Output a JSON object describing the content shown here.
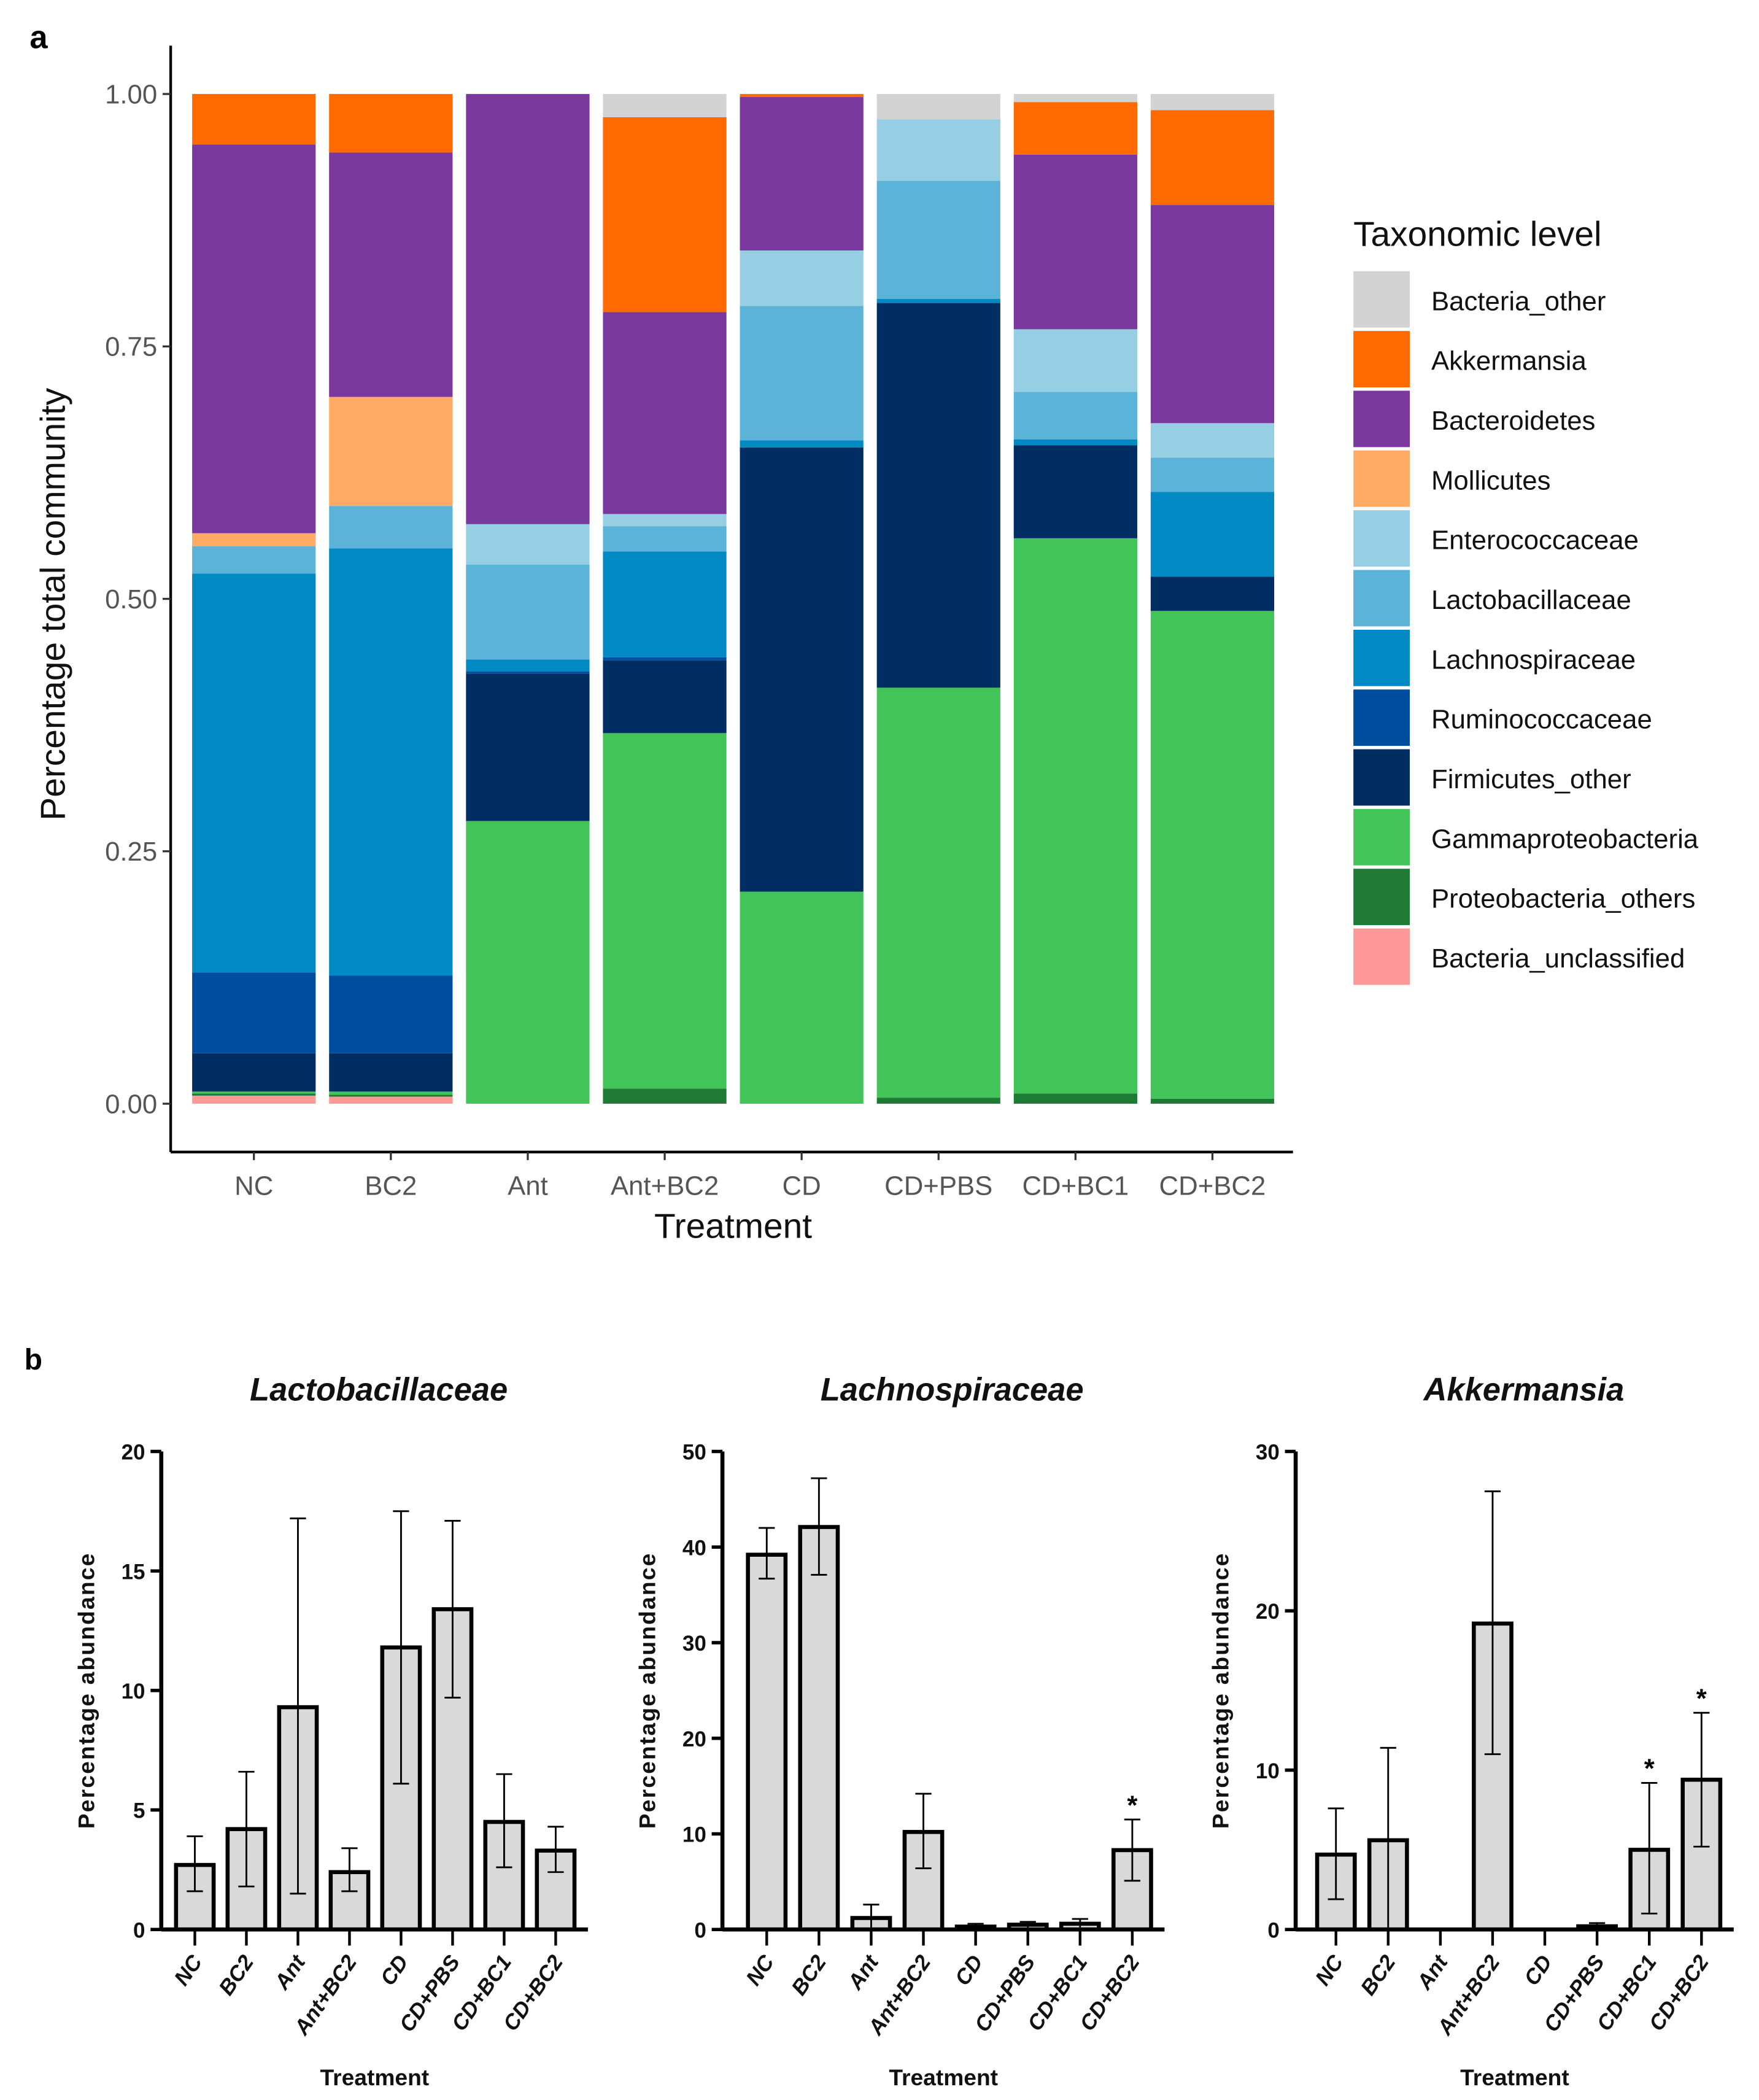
{
  "panel_labels": [
    "a",
    "b"
  ],
  "chart_data": [
    {
      "type": "bar",
      "stacked": true,
      "xlabel": "Treatment",
      "ylabel": "Percentage total community",
      "ylim": [
        0,
        1
      ],
      "yticks": [
        "0.00",
        "0.25",
        "0.50",
        "0.75",
        "1.00"
      ],
      "legend_title": "Taxonomic level",
      "legend_position": "right",
      "categories": [
        "NC",
        "BC2",
        "Ant",
        "Ant+BC2",
        "CD",
        "CD+PBS",
        "CD+BC1",
        "CD+BC2"
      ],
      "series": [
        {
          "name": "Bacteria_unclassified",
          "color": "#ff9999",
          "values": [
            0.008,
            0.007,
            0,
            0,
            0,
            0,
            0,
            0
          ]
        },
        {
          "name": "Proteobacteria_others",
          "color": "#1f7a35",
          "values": [
            0.002,
            0.002,
            0,
            0.015,
            0,
            0.006,
            0.01,
            0.005
          ]
        },
        {
          "name": "Gammaproteobacteria",
          "color": "#42c459",
          "values": [
            0.002,
            0.003,
            0.28,
            0.352,
            0.21,
            0.406,
            0.55,
            0.483
          ]
        },
        {
          "name": "Firmicutes_other",
          "color": "#002d62",
          "values": [
            0.038,
            0.038,
            0.146,
            0.072,
            0.44,
            0.381,
            0.092,
            0.034
          ]
        },
        {
          "name": "Ruminococcaceae",
          "color": "#004c9e",
          "values": [
            0.08,
            0.077,
            0.002,
            0.003,
            0,
            0,
            0,
            0
          ]
        },
        {
          "name": "Lachnospiraceae",
          "color": "#0089c2",
          "values": [
            0.395,
            0.423,
            0.012,
            0.105,
            0.007,
            0.004,
            0.006,
            0.084
          ]
        },
        {
          "name": "Lactobacillaceae",
          "color": "#5cb3d8",
          "values": [
            0.027,
            0.042,
            0.094,
            0.025,
            0.133,
            0.117,
            0.047,
            0.034
          ]
        },
        {
          "name": "Enterococcaceae",
          "color": "#96cee4",
          "values": [
            0,
            0,
            0.04,
            0.012,
            0.055,
            0.061,
            0.062,
            0.034
          ]
        },
        {
          "name": "Mollicutes",
          "color": "#ffab66",
          "values": [
            0.013,
            0.108,
            0,
            0,
            0,
            0,
            0,
            0
          ]
        },
        {
          "name": "Bacteroidetes",
          "color": "#7a389e",
          "values": [
            0.385,
            0.242,
            0.426,
            0.2,
            0.152,
            0,
            0.173,
            0.216
          ]
        },
        {
          "name": "Akkermansia",
          "color": "#ff6a00",
          "values": [
            0.05,
            0.058,
            0,
            0.193,
            0.003,
            0,
            0.052,
            0.094
          ]
        },
        {
          "name": "Bacteria_other",
          "color": "#d3d3d3",
          "values": [
            0,
            0,
            0,
            0.023,
            0,
            0.025,
            0.008,
            0.016
          ]
        }
      ]
    },
    {
      "type": "bar",
      "title": "Lactobacillaceae",
      "xlabel": "Treatment",
      "ylabel": "Percentage abundance",
      "ylim": [
        0,
        20
      ],
      "yticks": [
        "0",
        "5",
        "10",
        "15",
        "20"
      ],
      "categories": [
        "NC",
        "BC2",
        "Ant",
        "Ant+BC2",
        "CD",
        "CD+PBS",
        "CD+BC1",
        "CD+BC2"
      ],
      "values": [
        2.7,
        4.2,
        9.3,
        2.4,
        11.8,
        13.4,
        4.5,
        3.3
      ],
      "error_low": [
        1.6,
        1.8,
        1.5,
        1.6,
        6.1,
        9.7,
        2.6,
        2.4
      ],
      "error_high": [
        3.9,
        6.6,
        17.2,
        3.4,
        17.5,
        17.1,
        6.5,
        4.3
      ],
      "significance": [
        "",
        "",
        "",
        "",
        "",
        "",
        "",
        ""
      ]
    },
    {
      "type": "bar",
      "title": "Lachnospiraceae",
      "xlabel": "Treatment",
      "ylabel": "Percentage abundance",
      "ylim": [
        0,
        50
      ],
      "yticks": [
        "0",
        "10",
        "20",
        "30",
        "40",
        "50"
      ],
      "categories": [
        "NC",
        "BC2",
        "Ant",
        "Ant+BC2",
        "CD",
        "CD+PBS",
        "CD+BC1",
        "CD+BC2"
      ],
      "values": [
        39.2,
        42.1,
        1.2,
        10.2,
        0.3,
        0.5,
        0.6,
        8.3
      ],
      "error_low": [
        36.7,
        37.1,
        0,
        6.4,
        0,
        0,
        0,
        5.1
      ],
      "error_high": [
        42.0,
        47.2,
        2.6,
        14.2,
        0.6,
        0.8,
        1.1,
        11.5
      ],
      "significance": [
        "",
        "",
        "",
        "",
        "",
        "",
        "",
        "*"
      ]
    },
    {
      "type": "bar",
      "title": "Akkermansia",
      "xlabel": "Treatment",
      "ylabel": "Percentage abundance",
      "ylim": [
        0,
        30
      ],
      "yticks": [
        "0",
        "10",
        "20",
        "30"
      ],
      "categories": [
        "NC",
        "BC2",
        "Ant",
        "Ant+BC2",
        "CD",
        "CD+PBS",
        "CD+BC1",
        "CD+BC2"
      ],
      "values": [
        4.7,
        5.6,
        0,
        19.2,
        0,
        0.2,
        5.0,
        9.4
      ],
      "error_low": [
        1.9,
        0,
        0,
        11.0,
        0,
        0,
        1.0,
        5.2
      ],
      "error_high": [
        7.6,
        11.4,
        0,
        27.5,
        0,
        0.4,
        9.2,
        13.6
      ],
      "significance": [
        "",
        "",
        "",
        "",
        "",
        "",
        "*",
        "*"
      ]
    }
  ]
}
